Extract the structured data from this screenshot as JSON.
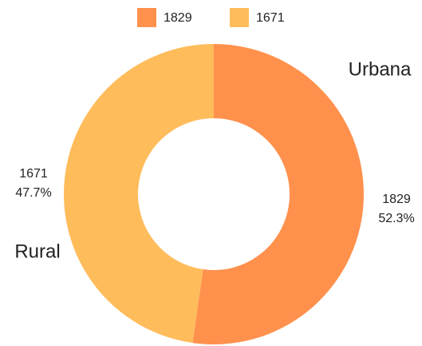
{
  "chart_data": {
    "type": "donut",
    "categories": [
      "Urbana",
      "Rural"
    ],
    "values": [
      1829,
      1671
    ],
    "value_labels": [
      "52.3%",
      "47.7%"
    ],
    "colors": [
      "#ff914d",
      "#ffbc5b"
    ]
  }
}
